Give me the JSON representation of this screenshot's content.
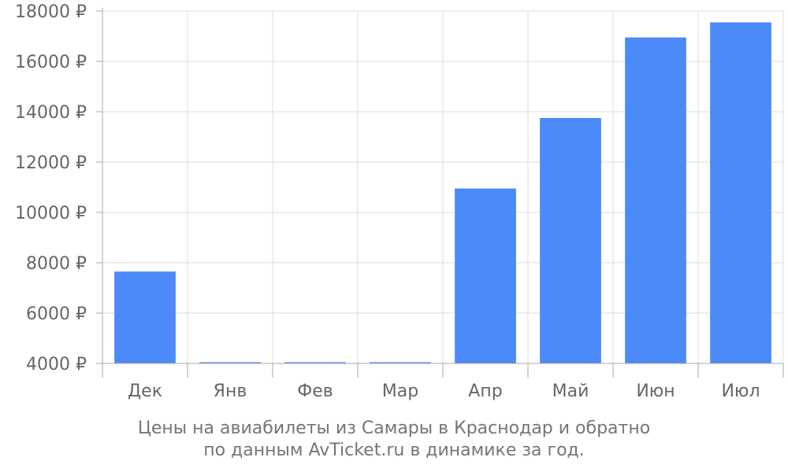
{
  "chart_data": {
    "type": "bar",
    "categories": [
      "Дек",
      "Янв",
      "Фев",
      "Мар",
      "Апр",
      "Май",
      "Июн",
      "Июл"
    ],
    "values": [
      7650,
      4050,
      4050,
      4050,
      10950,
      13750,
      16950,
      17550
    ],
    "ylim": [
      4000,
      18000
    ],
    "yticks": [
      4000,
      6000,
      8000,
      10000,
      12000,
      14000,
      16000,
      18000
    ],
    "ytick_labels": [
      "4000 ₽",
      "6000 ₽",
      "8000 ₽",
      "10000 ₽",
      "12000 ₽",
      "14000 ₽",
      "16000 ₽",
      "18000 ₽"
    ],
    "grid": true,
    "bar_color": "#4d8af9",
    "caption_line1": "Цены на авиабилеты из Самары в Краснодар и обратно",
    "caption_line2": "по данным AvTicket.ru в динамике за год."
  }
}
